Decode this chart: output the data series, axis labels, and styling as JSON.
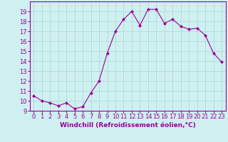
{
  "x": [
    0,
    1,
    2,
    3,
    4,
    5,
    6,
    7,
    8,
    9,
    10,
    11,
    12,
    13,
    14,
    15,
    16,
    17,
    18,
    19,
    20,
    21,
    22,
    23
  ],
  "y": [
    10.5,
    10.0,
    9.8,
    9.5,
    9.8,
    9.2,
    9.4,
    10.8,
    12.0,
    14.8,
    17.0,
    18.2,
    19.0,
    17.6,
    19.2,
    19.2,
    17.8,
    18.2,
    17.5,
    17.2,
    17.3,
    16.6,
    14.8,
    13.9
  ],
  "line_color": "#990099",
  "marker": "D",
  "marker_size": 2,
  "bg_color": "#cff0f0",
  "grid_color": "#aad4d4",
  "xlabel": "Windchill (Refroidissement éolien,°C)",
  "ylim": [
    9,
    20
  ],
  "xlim": [
    -0.5,
    23.5
  ],
  "yticks": [
    9,
    10,
    11,
    12,
    13,
    14,
    15,
    16,
    17,
    18,
    19
  ],
  "xticks": [
    0,
    1,
    2,
    3,
    4,
    5,
    6,
    7,
    8,
    9,
    10,
    11,
    12,
    13,
    14,
    15,
    16,
    17,
    18,
    19,
    20,
    21,
    22,
    23
  ],
  "xlabel_fontsize": 6.5,
  "tick_fontsize": 6.0
}
